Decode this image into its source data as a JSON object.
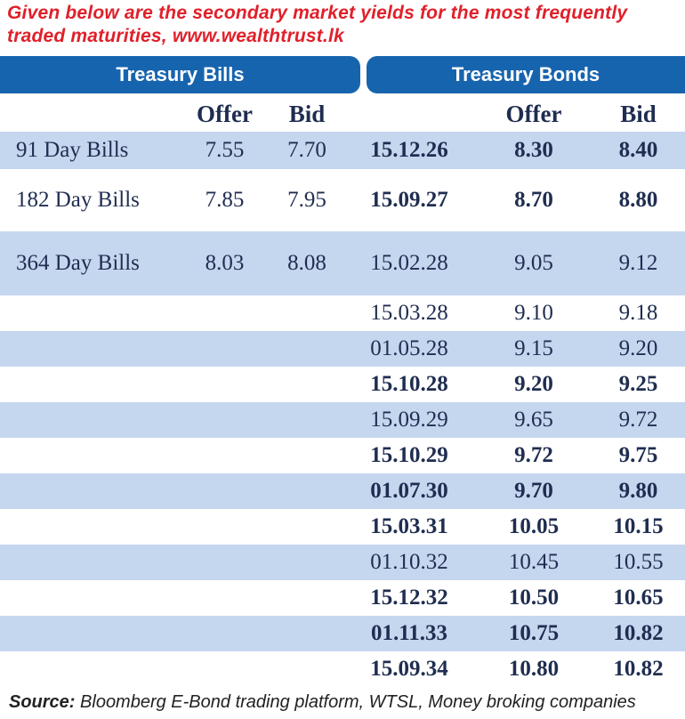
{
  "header": {
    "title": "Given below are the secondary market yields for the most frequently traded maturities, www.wealthtrust.lk"
  },
  "bills": {
    "title": "Treasury Bills",
    "columns": [
      "Offer",
      "Bid"
    ],
    "rows": [
      {
        "label": "91 Day Bills",
        "offer": "7.55",
        "bid": "7.70"
      },
      {
        "label": "182 Day Bills",
        "offer": "7.85",
        "bid": "7.95"
      },
      {
        "label": "364 Day Bills",
        "offer": "8.03",
        "bid": "8.08"
      }
    ]
  },
  "bonds": {
    "title": "Treasury Bonds",
    "columns": [
      "Offer",
      "Bid"
    ],
    "rows": [
      {
        "date": "15.12.26",
        "offer": "8.30",
        "bid": "8.40",
        "bold": true
      },
      {
        "date": "15.09.27",
        "offer": "8.70",
        "bid": "8.80",
        "bold": true
      },
      {
        "date": "15.02.28",
        "offer": "9.05",
        "bid": "9.12",
        "bold": false
      },
      {
        "date": "15.03.28",
        "offer": "9.10",
        "bid": "9.18",
        "bold": false
      },
      {
        "date": "01.05.28",
        "offer": "9.15",
        "bid": "9.20",
        "bold": false
      },
      {
        "date": "15.10.28",
        "offer": "9.20",
        "bid": "9.25",
        "bold": true
      },
      {
        "date": "15.09.29",
        "offer": "9.65",
        "bid": "9.72",
        "bold": false
      },
      {
        "date": "15.10.29",
        "offer": "9.72",
        "bid": "9.75",
        "bold": true
      },
      {
        "date": "01.07.30",
        "offer": "9.70",
        "bid": "9.80",
        "bold": true
      },
      {
        "date": "15.03.31",
        "offer": "10.05",
        "bid": "10.15",
        "bold": true
      },
      {
        "date": "01.10.32",
        "offer": "10.45",
        "bid": "10.55",
        "bold": false
      },
      {
        "date": "15.12.32",
        "offer": "10.50",
        "bid": "10.65",
        "bold": true
      },
      {
        "date": "01.11.33",
        "offer": "10.75",
        "bid": "10.82",
        "bold": true
      },
      {
        "date": "15.09.34",
        "offer": "10.80",
        "bid": "10.82",
        "bold": true
      }
    ]
  },
  "source": {
    "label": "Source:",
    "text": "Bloomberg E-Bond trading platform, WTSL, Money broking companies"
  }
}
